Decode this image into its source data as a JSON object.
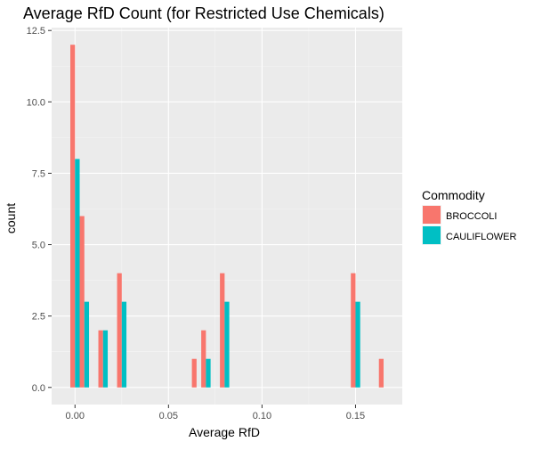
{
  "chart_data": {
    "type": "bar",
    "title": "Average RfD Count (for Restricted Use Chemicals)",
    "xlabel": "Average RfD",
    "ylabel": "count",
    "xlim": [
      -0.0125,
      0.175
    ],
    "ylim": [
      -0.6,
      12.6
    ],
    "x_ticks": [
      0.0,
      0.05,
      0.1,
      0.15
    ],
    "x_tick_labels": [
      "0.00",
      "0.05",
      "0.10",
      "0.15"
    ],
    "y_ticks": [
      0.0,
      2.5,
      5.0,
      7.5,
      10.0,
      12.5
    ],
    "y_tick_labels": [
      "0.0",
      "2.5",
      "5.0",
      "7.5",
      "10.0",
      "12.5"
    ],
    "bin_width": 0.005,
    "grid": true,
    "legend": {
      "title": "Commodity",
      "position": "right"
    },
    "series": [
      {
        "name": "BROCCOLI",
        "color": "#F8766D",
        "x": [
          0.0,
          0.005,
          0.015,
          0.025,
          0.065,
          0.07,
          0.08,
          0.15,
          0.165
        ],
        "values": [
          12,
          6,
          2,
          4,
          1,
          2,
          4,
          4,
          1
        ]
      },
      {
        "name": "CAULIFLOWER",
        "color": "#00BFC4",
        "x": [
          0.0,
          0.005,
          0.015,
          0.025,
          0.07,
          0.08,
          0.15
        ],
        "values": [
          8,
          3,
          2,
          3,
          1,
          3,
          3
        ]
      }
    ]
  }
}
